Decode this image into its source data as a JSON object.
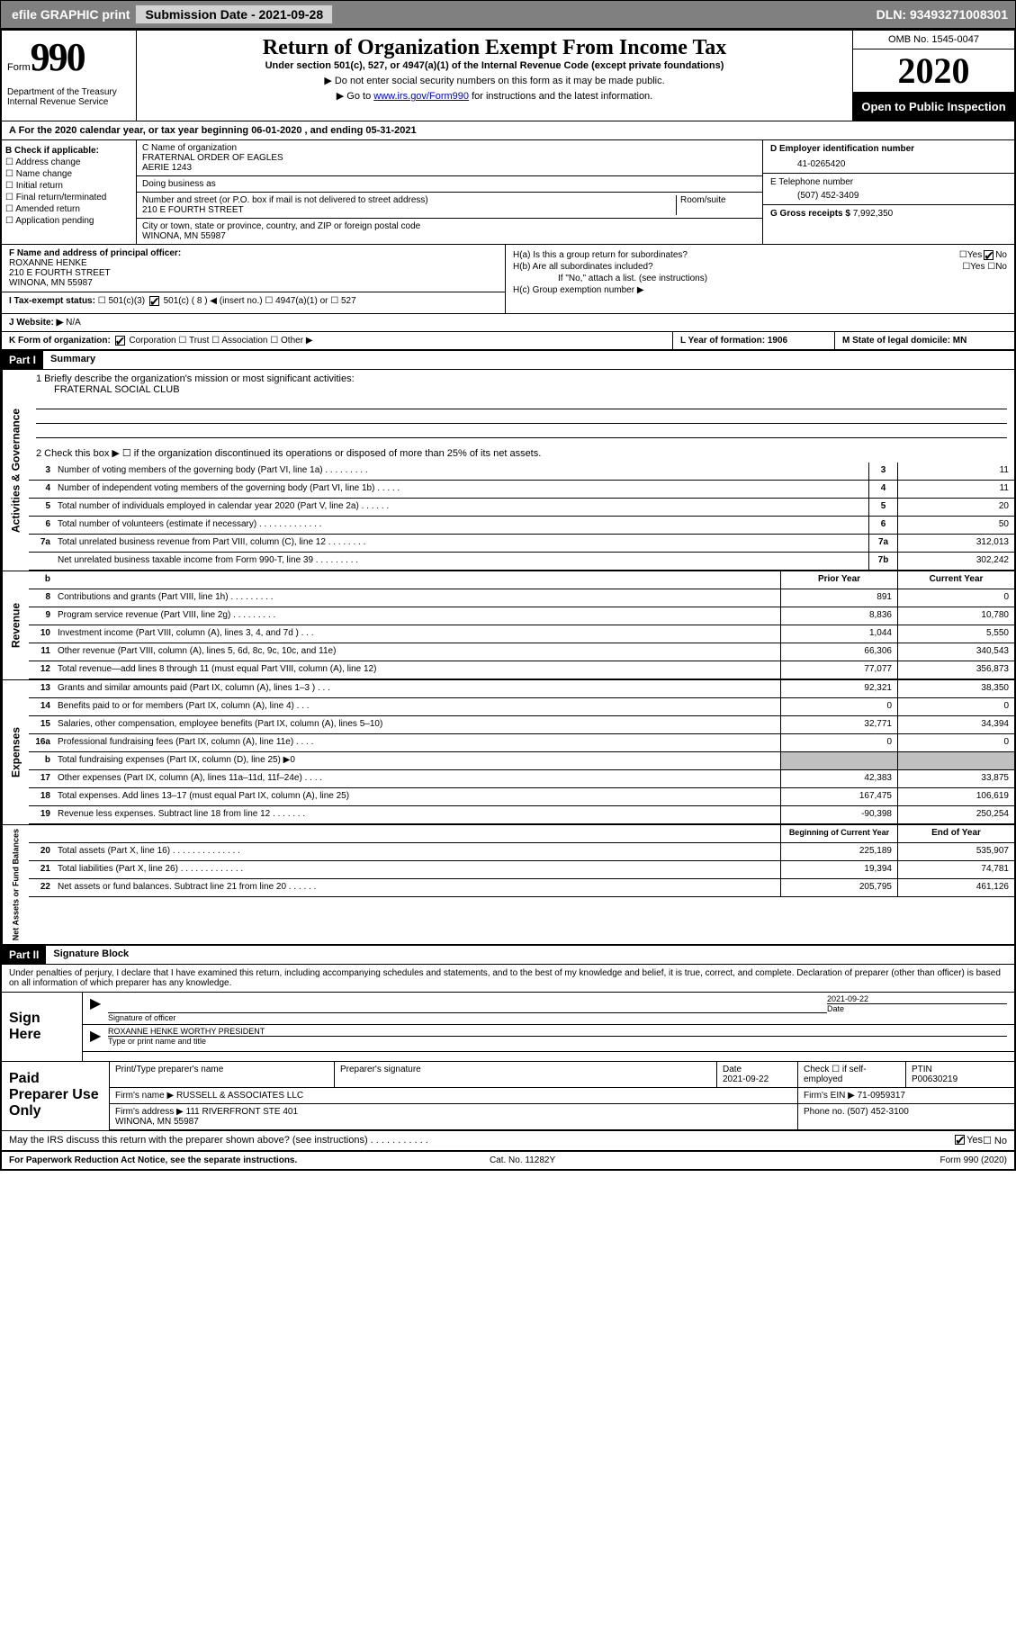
{
  "topbar": {
    "efile": "efile GRAPHIC print",
    "sub_label": "Submission Date - 2021-09-28",
    "dln": "DLN: 93493271008301"
  },
  "header": {
    "form_word": "Form",
    "form_num": "990",
    "dept": "Department of the Treasury\nInternal Revenue Service",
    "title": "Return of Organization Exempt From Income Tax",
    "subtitle": "Under section 501(c), 527, or 4947(a)(1) of the Internal Revenue Code (except private foundations)",
    "note1": "▶ Do not enter social security numbers on this form as it may be made public.",
    "note2_pre": "▶ Go to ",
    "note2_link": "www.irs.gov/Form990",
    "note2_post": " for instructions and the latest information.",
    "omb": "OMB No. 1545-0047",
    "year": "2020",
    "opi": "Open to Public Inspection"
  },
  "rowA": "A For the 2020 calendar year, or tax year beginning 06-01-2020    , and ending 05-31-2021",
  "boxB": {
    "title": "B Check if applicable:",
    "items": [
      "Address change",
      "Name change",
      "Initial return",
      "Final return/terminated",
      "Amended return",
      "Application pending"
    ]
  },
  "boxC": {
    "name_label": "C Name of organization",
    "name": "FRATERNAL ORDER OF EAGLES\nAERIE 1243",
    "dba_label": "Doing business as",
    "street_label": "Number and street (or P.O. box if mail is not delivered to street address)",
    "room_label": "Room/suite",
    "street": "210 E FOURTH STREET",
    "city_label": "City or town, state or province, country, and ZIP or foreign postal code",
    "city": "WINONA, MN  55987"
  },
  "boxD": {
    "label": "D Employer identification number",
    "value": "41-0265420"
  },
  "boxE": {
    "label": "E Telephone number",
    "value": "(507) 452-3409"
  },
  "boxG": {
    "label": "G Gross receipts $",
    "value": "7,992,350"
  },
  "boxF": {
    "label": "F Name and address of principal officer:",
    "name": "ROXANNE HENKE",
    "street": "210 E FOURTH STREET",
    "city": "WINONA, MN  55987"
  },
  "boxH": {
    "ha": "H(a)  Is this a group return for subordinates?",
    "hb": "H(b)  Are all subordinates included?",
    "hbnote": "If \"No,\" attach a list. (see instructions)",
    "hc": "H(c)  Group exemption number ▶"
  },
  "rowI": {
    "label": "I    Tax-exempt status:",
    "opts": [
      "501(c)(3)",
      "501(c) ( 8 ) ◀ (insert no.)",
      "4947(a)(1) or",
      "527"
    ]
  },
  "rowJ": {
    "label": "J    Website: ▶",
    "value": "N/A"
  },
  "rowK": {
    "label": "K Form of organization:",
    "opts": [
      "Corporation",
      "Trust",
      "Association",
      "Other ▶"
    ],
    "L": "L Year of formation: 1906",
    "M": "M State of legal domicile: MN"
  },
  "part1": {
    "header": "Part I",
    "title": "Summary",
    "q1_label": "1  Briefly describe the organization's mission or most significant activities:",
    "q1_value": "FRATERNAL SOCIAL CLUB",
    "q2": "2   Check this box ▶ ☐  if the organization discontinued its operations or disposed of more than 25% of its net assets.",
    "lines_gov": [
      {
        "n": "3",
        "t": "Number of voting members of the governing body (Part VI, line 1a)  .  .  .  .  .  .  .  .  .",
        "b": "3",
        "v": "11"
      },
      {
        "n": "4",
        "t": "Number of independent voting members of the governing body (Part VI, line 1b)  .  .  .  .  .",
        "b": "4",
        "v": "11"
      },
      {
        "n": "5",
        "t": "Total number of individuals employed in calendar year 2020 (Part V, line 2a)  .  .  .  .  .  .",
        "b": "5",
        "v": "20"
      },
      {
        "n": "6",
        "t": "Total number of volunteers (estimate if necessary)  .  .  .  .  .  .  .  .  .  .  .  .  .",
        "b": "6",
        "v": "50"
      },
      {
        "n": "7a",
        "t": "Total unrelated business revenue from Part VIII, column (C), line 12  .  .  .  .  .  .  .  .",
        "b": "7a",
        "v": "312,013"
      },
      {
        "n": "",
        "t": "Net unrelated business taxable income from Form 990-T, line 39  .  .  .  .  .  .  .  .  .",
        "b": "7b",
        "v": "302,242"
      }
    ],
    "rev_hdr": {
      "b": "b",
      "prior": "Prior Year",
      "curr": "Current Year"
    },
    "lines_rev": [
      {
        "n": "8",
        "t": "Contributions and grants (Part VIII, line 1h)  .  .  .  .  .  .  .  .  .",
        "p": "891",
        "c": "0"
      },
      {
        "n": "9",
        "t": "Program service revenue (Part VIII, line 2g)  .  .  .  .  .  .  .  .  .",
        "p": "8,836",
        "c": "10,780"
      },
      {
        "n": "10",
        "t": "Investment income (Part VIII, column (A), lines 3, 4, and 7d )   .   .   .",
        "p": "1,044",
        "c": "5,550"
      },
      {
        "n": "11",
        "t": "Other revenue (Part VIII, column (A), lines 5, 6d, 8c, 9c, 10c, and 11e)",
        "p": "66,306",
        "c": "340,543"
      },
      {
        "n": "12",
        "t": "Total revenue—add lines 8 through 11 (must equal Part VIII, column (A), line 12)",
        "p": "77,077",
        "c": "356,873"
      }
    ],
    "lines_exp": [
      {
        "n": "13",
        "t": "Grants and similar amounts paid (Part IX, column (A), lines 1–3 )   .   .   .",
        "p": "92,321",
        "c": "38,350"
      },
      {
        "n": "14",
        "t": "Benefits paid to or for members (Part IX, column (A), line 4)   .   .   .",
        "p": "0",
        "c": "0"
      },
      {
        "n": "15",
        "t": "Salaries, other compensation, employee benefits (Part IX, column (A), lines 5–10)",
        "p": "32,771",
        "c": "34,394"
      },
      {
        "n": "16a",
        "t": "Professional fundraising fees (Part IX, column (A), line 11e)   .   .   .   .",
        "p": "0",
        "c": "0"
      },
      {
        "n": "b",
        "t": "Total fundraising expenses (Part IX, column (D), line 25) ▶0",
        "p": "",
        "c": "",
        "shade": true
      },
      {
        "n": "17",
        "t": "Other expenses (Part IX, column (A), lines 11a–11d, 11f–24e)   .   .   .   .",
        "p": "42,383",
        "c": "33,875"
      },
      {
        "n": "18",
        "t": "Total expenses. Add lines 13–17 (must equal Part IX, column (A), line 25)",
        "p": "167,475",
        "c": "106,619"
      },
      {
        "n": "19",
        "t": "Revenue less expenses. Subtract line 18 from line 12  .  .  .  .  .  .  .",
        "p": "-90,398",
        "c": "250,254"
      }
    ],
    "na_hdr": {
      "prior": "Beginning of Current Year",
      "curr": "End of Year"
    },
    "lines_na": [
      {
        "n": "20",
        "t": "Total assets (Part X, line 16)  .  .  .  .  .  .  .  .  .  .  .  .  .  .",
        "p": "225,189",
        "c": "535,907"
      },
      {
        "n": "21",
        "t": "Total liabilities (Part X, line 26)  .  .  .  .  .  .  .  .  .  .  .  .  .",
        "p": "19,394",
        "c": "74,781"
      },
      {
        "n": "22",
        "t": "Net assets or fund balances. Subtract line 21 from line 20  .  .  .  .  .  .",
        "p": "205,795",
        "c": "461,126"
      }
    ]
  },
  "part2": {
    "header": "Part II",
    "title": "Signature Block",
    "penalty": "Under penalties of perjury, I declare that I have examined this return, including accompanying schedules and statements, and to the best of my knowledge and belief, it is true, correct, and complete. Declaration of preparer (other than officer) is based on all information of which preparer has any knowledge.",
    "sign_here": "Sign Here",
    "sig_officer": "Signature of officer",
    "sig_date": "2021-09-22",
    "sig_date_label": "Date",
    "sig_name": "ROXANNE HENKE WORTHY PRESIDENT",
    "sig_name_label": "Type or print name and title",
    "paid_label": "Paid Preparer Use Only",
    "prep_name_label": "Print/Type preparer's name",
    "prep_sig_label": "Preparer's signature",
    "prep_date_label": "Date",
    "prep_date": "2021-09-22",
    "prep_check": "Check ☐  if self-employed",
    "ptin_label": "PTIN",
    "ptin": "P00630219",
    "firm_name_label": "Firm's name      ▶",
    "firm_name": "RUSSELL & ASSOCIATES LLC",
    "firm_ein_label": "Firm's EIN ▶",
    "firm_ein": "71-0959317",
    "firm_addr_label": "Firm's address ▶",
    "firm_addr": "111 RIVERFRONT STE 401\nWINONA, MN  55987",
    "firm_phone_label": "Phone no.",
    "firm_phone": "(507) 452-3100",
    "discuss": "May the IRS discuss this return with the preparer shown above? (see instructions)   .   .   .   .   .   .   .   .   .   .   .",
    "paperwork": "For Paperwork Reduction Act Notice, see the separate instructions.",
    "catno": "Cat. No. 11282Y",
    "formfoot": "Form 990 (2020)"
  }
}
